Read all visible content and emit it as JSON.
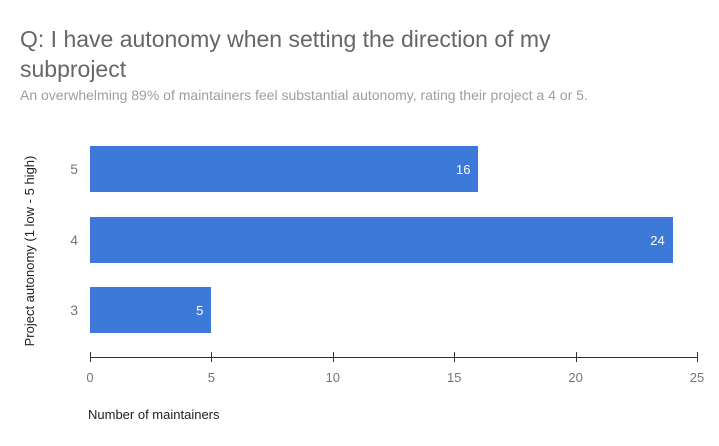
{
  "chart_data": {
    "type": "bar",
    "orientation": "horizontal",
    "title": "Q: I have autonomy when setting the direction of my subproject",
    "subtitle": "An overwhelming 89% of maintainers feel substantial autonomy, rating their project a 4 or 5.",
    "categories": [
      "5",
      "4",
      "3"
    ],
    "values": [
      16,
      24,
      5
    ],
    "value_labels": [
      "16",
      "24",
      "5"
    ],
    "xlabel": "Number of maintainers",
    "ylabel": "Project autonomy (1 low - 5 high)",
    "xlim": [
      0,
      25
    ],
    "xticks": [
      "0",
      "5",
      "10",
      "15",
      "20",
      "25"
    ],
    "grid": false,
    "legend": false,
    "colors": {
      "bar": "#3d79d9",
      "bar_value_text": "#ffffff",
      "title_text": "#666666",
      "subtitle_text": "#9e9e9e",
      "axis_label_text": "#757575",
      "axis_title_text": "#212121",
      "axis_line": "#333333",
      "background": "#ffffff"
    }
  }
}
